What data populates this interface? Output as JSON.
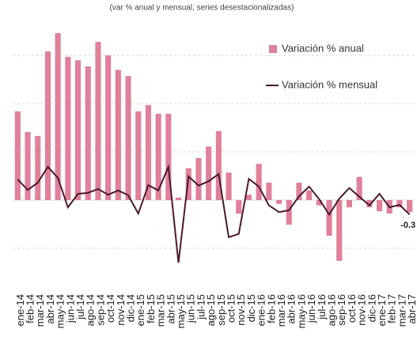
{
  "chart_data": {
    "type": "bar_line",
    "subtitle": "(var % anual y mensual, series desestacionalizadas)",
    "categories": [
      "ene-14",
      "feb-14",
      "mar-14",
      "abr-14",
      "may-14",
      "jun-14",
      "jul-14",
      "ago-14",
      "sep-14",
      "oct-14",
      "nov-14",
      "dic-14",
      "ene-15",
      "feb-15",
      "mar-15",
      "abr-15",
      "may-15",
      "jun-15",
      "jul-15",
      "ago-15",
      "sep-15",
      "oct-15",
      "nov-15",
      "dic-15",
      "ene-16",
      "feb-16",
      "mar-16",
      "abr-16",
      "may-16",
      "jun-16",
      "jul-16",
      "ago-16",
      "sep-16",
      "oct-16",
      "nov-16",
      "dic-16",
      "ene-17",
      "feb-17",
      "mar-17",
      "abr-17"
    ],
    "series": [
      {
        "name": "Variación % anual",
        "type": "bar",
        "color": "#e0809a",
        "values": [
          1.84,
          1.41,
          1.33,
          3.08,
          3.46,
          2.97,
          2.9,
          2.77,
          3.28,
          3.0,
          2.7,
          2.57,
          1.84,
          1.97,
          1.79,
          1.79,
          0.05,
          0.66,
          0.87,
          1.11,
          1.43,
          0.57,
          -0.28,
          0.11,
          0.75,
          0.36,
          -0.08,
          -0.51,
          0.36,
          0.2,
          -0.11,
          -0.74,
          -1.26,
          -0.15,
          0.48,
          -0.15,
          -0.23,
          -0.28,
          -0.15,
          -0.25
        ]
      },
      {
        "name": "Variación % mensual",
        "type": "line",
        "color": "#4a1a2c",
        "values": [
          0.43,
          0.21,
          0.36,
          0.69,
          0.46,
          -0.15,
          0.13,
          0.15,
          0.23,
          0.11,
          0.2,
          0.1,
          -0.28,
          0.31,
          0.2,
          0.69,
          -1.3,
          0.49,
          0.3,
          0.39,
          0.54,
          -0.77,
          -0.7,
          0.44,
          0.28,
          -0.11,
          -0.25,
          -0.21,
          0.08,
          0.28,
          0.02,
          -0.3,
          0.03,
          0.25,
          0.07,
          -0.11,
          0.13,
          -0.15,
          -0.1,
          -0.3
        ]
      }
    ],
    "ylim": [
      -1.4,
      3.8
    ],
    "yticks": [
      -1,
      0,
      1,
      2,
      3
    ],
    "grid": true,
    "legend": "top-right"
  }
}
